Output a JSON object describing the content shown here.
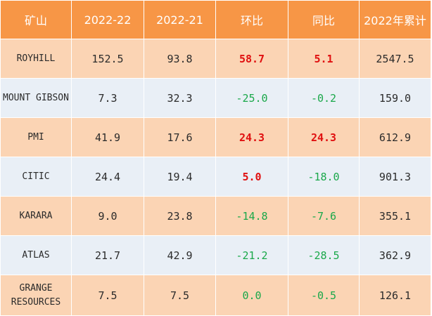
{
  "table": {
    "headers": [
      "矿山",
      "2022-22",
      "2022-21",
      "环比",
      "同比",
      "2022年累计"
    ],
    "rows": [
      {
        "name": "ROYHILL",
        "cur": "152.5",
        "prev": "93.8",
        "mom": "58.7",
        "mom_sign": "pos",
        "yoy": "5.1",
        "yoy_sign": "pos",
        "ytd": "2547.5"
      },
      {
        "name": "MOUNT GIBSON",
        "cur": "7.3",
        "prev": "32.3",
        "mom": "-25.0",
        "mom_sign": "neg",
        "yoy": "-0.2",
        "yoy_sign": "neg",
        "ytd": "159.0"
      },
      {
        "name": "PMI",
        "cur": "41.9",
        "prev": "17.6",
        "mom": "24.3",
        "mom_sign": "pos",
        "yoy": "24.3",
        "yoy_sign": "pos",
        "ytd": "612.9"
      },
      {
        "name": "CITIC",
        "cur": "24.4",
        "prev": "19.4",
        "mom": "5.0",
        "mom_sign": "pos",
        "yoy": "-18.0",
        "yoy_sign": "neg",
        "ytd": "901.3"
      },
      {
        "name": "KARARA",
        "cur": "9.0",
        "prev": "23.8",
        "mom": "-14.8",
        "mom_sign": "neg",
        "yoy": "-7.6",
        "yoy_sign": "neg",
        "ytd": "355.1"
      },
      {
        "name": "ATLAS",
        "cur": "21.7",
        "prev": "42.9",
        "mom": "-21.2",
        "mom_sign": "neg",
        "yoy": "-28.5",
        "yoy_sign": "neg",
        "ytd": "362.9"
      },
      {
        "name": "GRANGE RESOURCES",
        "cur": "7.5",
        "prev": "7.5",
        "mom": "0.0",
        "mom_sign": "zero",
        "yoy": "-0.5",
        "yoy_sign": "neg",
        "ytd": "126.1"
      }
    ]
  },
  "colors": {
    "header_bg": "#f79646",
    "odd_row_bg": "#fbd4b4",
    "even_row_bg": "#e9eff6",
    "positive": "#e01010",
    "negative": "#1aa84a"
  }
}
